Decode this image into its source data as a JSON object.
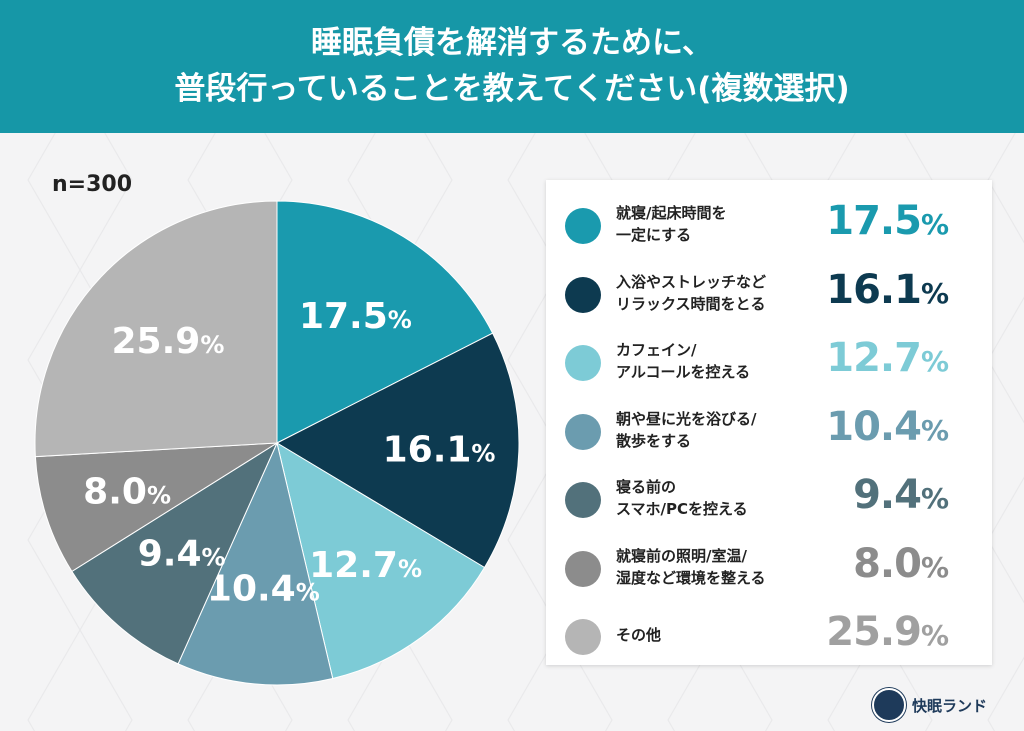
{
  "header": {
    "line1": "睡眠負債を解消するために、",
    "line2": "普段行っていることを教えてください(複数選択)"
  },
  "sample": "n=300",
  "logo": "快眠ランド",
  "chart_data": {
    "type": "pie",
    "title": "睡眠負債を解消するために、普段行っていることを教えてください(複数選択)",
    "unit": "%",
    "slices": [
      {
        "label": "就寝/起床時間を一定にする",
        "line1": "就寝/起床時間を",
        "line2": "一定にする",
        "value": 17.5,
        "display": "17.5",
        "color": "#1a9aae",
        "label_color": "#fff"
      },
      {
        "label": "入浴やストレッチなどリラックス時間をとる",
        "line1": "入浴やストレッチなど",
        "line2": "リラックス時間をとる",
        "value": 16.1,
        "display": "16.1",
        "color": "#0d3a50",
        "label_color": "#fff"
      },
      {
        "label": "カフェイン/アルコールを控える",
        "line1": "カフェイン/",
        "line2": "アルコールを控える",
        "value": 12.7,
        "display": "12.7",
        "color": "#7dcbd6",
        "label_color": "#fff"
      },
      {
        "label": "朝や昼に光を浴びる/散歩をする",
        "line1": "朝や昼に光を浴びる/",
        "line2": "散歩をする",
        "value": 10.4,
        "display": "10.4",
        "color": "#6b9caf",
        "label_color": "#fff"
      },
      {
        "label": "寝る前のスマホ/PCを控える",
        "line1": "寝る前の",
        "line2": "スマホ/PCを控える",
        "value": 9.4,
        "display": "9.4",
        "color": "#52717b",
        "label_color": "#fff"
      },
      {
        "label": "就寝前の照明/室温/湿度など環境を整える",
        "line1": "就寝前の照明/室温/",
        "line2": "湿度など環境を整える",
        "value": 8.0,
        "display": "8.0",
        "color": "#8c8c8c",
        "label_color": "#fff"
      },
      {
        "label": "その他",
        "line1": "その他",
        "line2": "",
        "value": 25.9,
        "display": "25.9",
        "color": "#b5b5b5",
        "label_color": "#fff"
      }
    ],
    "legend": "right"
  }
}
